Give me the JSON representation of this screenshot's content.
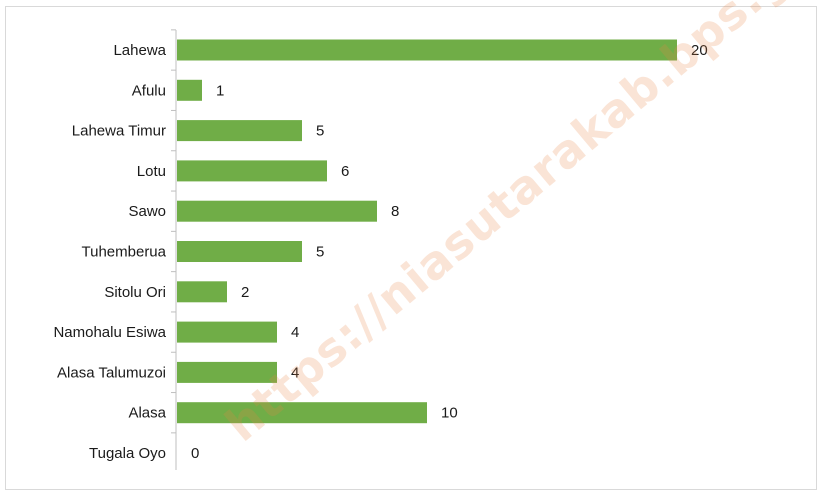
{
  "chart_data": {
    "type": "bar",
    "orientation": "horizontal",
    "categories": [
      "Lahewa",
      "Afulu",
      "Lahewa Timur",
      "Lotu",
      "Sawo",
      "Tuhemberua",
      "Sitolu Ori",
      "Namohalu Esiwa",
      "Alasa Talumuzoi",
      "Alasa",
      "Tugala Oyo"
    ],
    "values": [
      20,
      1,
      5,
      6,
      8,
      5,
      2,
      4,
      4,
      10,
      0
    ],
    "title": "",
    "xlabel": "",
    "ylabel": "",
    "xlim": [
      0,
      20
    ],
    "grid": false,
    "legend": "none",
    "data_labels": true,
    "bar_color": "#70ad47",
    "axis_color": "#bfbfbf"
  },
  "watermark": {
    "text": "https://niasutarakab.bps.go.id"
  }
}
